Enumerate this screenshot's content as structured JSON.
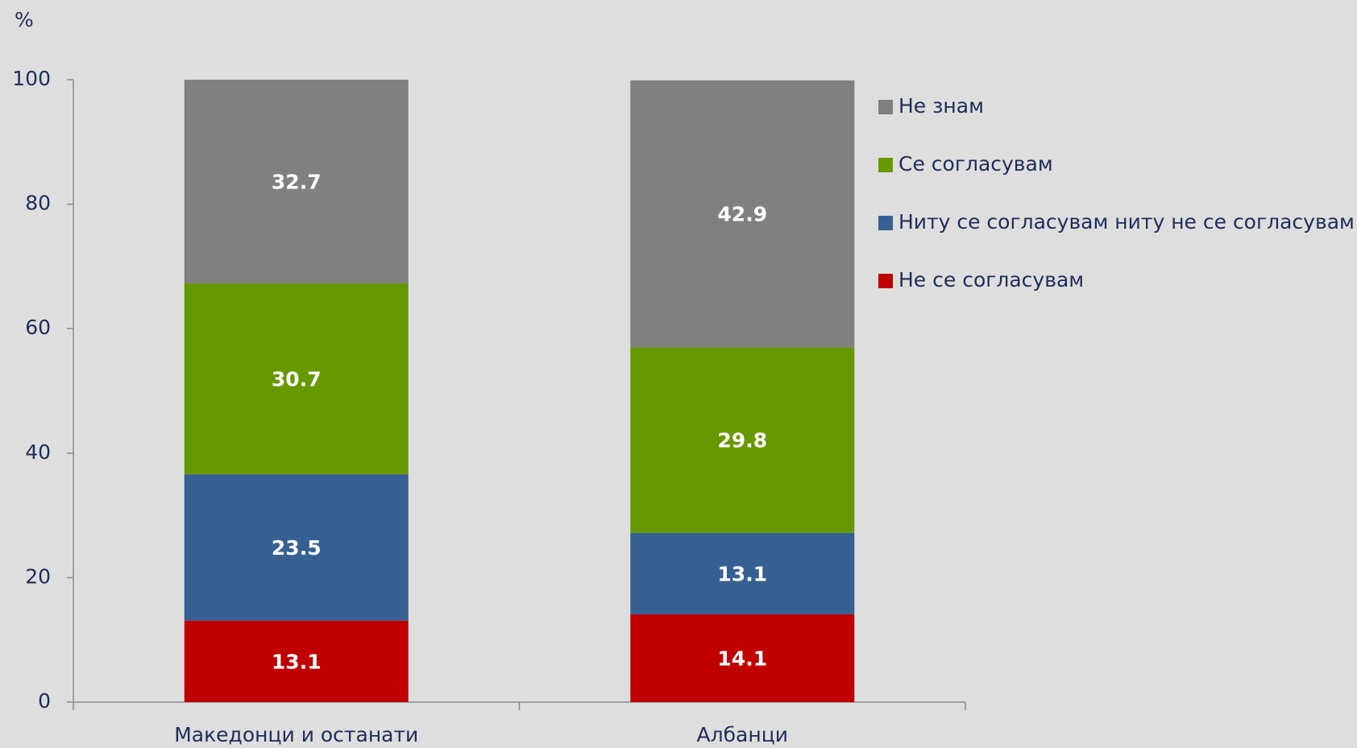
{
  "chart_data": {
    "type": "stacked_bar",
    "ylabel": "%",
    "categories": [
      "Македонци и останати",
      "Албанци"
    ],
    "series": [
      {
        "name": "Не се согласувам",
        "color": "#c00000",
        "values": [
          13.1,
          14.1
        ]
      },
      {
        "name": "Ниту се согласувам ниту не се согласувам",
        "color": "#376092",
        "values": [
          23.5,
          13.1
        ]
      },
      {
        "name": "Се согласувам",
        "color": "#669900",
        "values": [
          30.7,
          29.8
        ]
      },
      {
        "name": "Не знам",
        "color": "#808080",
        "values": [
          32.7,
          42.9
        ]
      }
    ],
    "ylim": [
      0,
      100
    ],
    "yticks": [
      0,
      20,
      40,
      60,
      80,
      100
    ],
    "legend": "right"
  }
}
